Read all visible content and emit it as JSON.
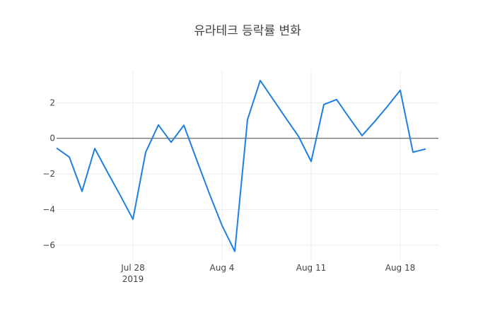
{
  "chart_data": {
    "type": "line",
    "title": "유라테크 등락률 변화",
    "xlabel": "",
    "ylabel": "",
    "x_axis": {
      "type": "date",
      "range": [
        "2019-07-22",
        "2019-08-21"
      ],
      "ticks": [
        {
          "date": "2019-07-28",
          "label": "Jul 28",
          "sublabel": "2019"
        },
        {
          "date": "2019-08-04",
          "label": "Aug 4",
          "sublabel": ""
        },
        {
          "date": "2019-08-11",
          "label": "Aug 11",
          "sublabel": ""
        },
        {
          "date": "2019-08-18",
          "label": "Aug 18",
          "sublabel": ""
        }
      ]
    },
    "y_axis": {
      "range": [
        -6.8,
        3.8
      ],
      "ticks": [
        2,
        0,
        -2,
        -4,
        -6
      ],
      "tick_labels": [
        "2",
        "0",
        "−2",
        "−4",
        "−6"
      ],
      "zeroline": true
    },
    "grid": true,
    "series": [
      {
        "color": "#1f7fe0",
        "points": [
          {
            "x": "2019-07-22",
            "y": -0.55
          },
          {
            "x": "2019-07-23",
            "y": -1.05
          },
          {
            "x": "2019-07-24",
            "y": -2.98
          },
          {
            "x": "2019-07-25",
            "y": -0.57
          },
          {
            "x": "2019-07-26",
            "y": -1.9
          },
          {
            "x": "2019-07-27",
            "y": -3.2
          },
          {
            "x": "2019-07-28",
            "y": -4.55
          },
          {
            "x": "2019-07-29",
            "y": -0.78
          },
          {
            "x": "2019-07-30",
            "y": 0.75
          },
          {
            "x": "2019-07-31",
            "y": -0.22
          },
          {
            "x": "2019-08-01",
            "y": 0.73
          },
          {
            "x": "2019-08-02",
            "y": -1.2
          },
          {
            "x": "2019-08-03",
            "y": -3.1
          },
          {
            "x": "2019-08-04",
            "y": -4.9
          },
          {
            "x": "2019-08-05",
            "y": -6.35
          },
          {
            "x": "2019-08-06",
            "y": 1.05
          },
          {
            "x": "2019-08-07",
            "y": 3.25
          },
          {
            "x": "2019-08-08",
            "y": 2.2
          },
          {
            "x": "2019-08-09",
            "y": 1.15
          },
          {
            "x": "2019-08-10",
            "y": 0.12
          },
          {
            "x": "2019-08-11",
            "y": -1.3
          },
          {
            "x": "2019-08-12",
            "y": 1.9
          },
          {
            "x": "2019-08-13",
            "y": 2.18
          },
          {
            "x": "2019-08-14",
            "y": 1.15
          },
          {
            "x": "2019-08-15",
            "y": 0.15
          },
          {
            "x": "2019-08-16",
            "y": 0.95
          },
          {
            "x": "2019-08-17",
            "y": 1.8
          },
          {
            "x": "2019-08-18",
            "y": 2.7
          },
          {
            "x": "2019-08-19",
            "y": -0.78
          },
          {
            "x": "2019-08-20",
            "y": -0.6
          }
        ]
      }
    ]
  }
}
